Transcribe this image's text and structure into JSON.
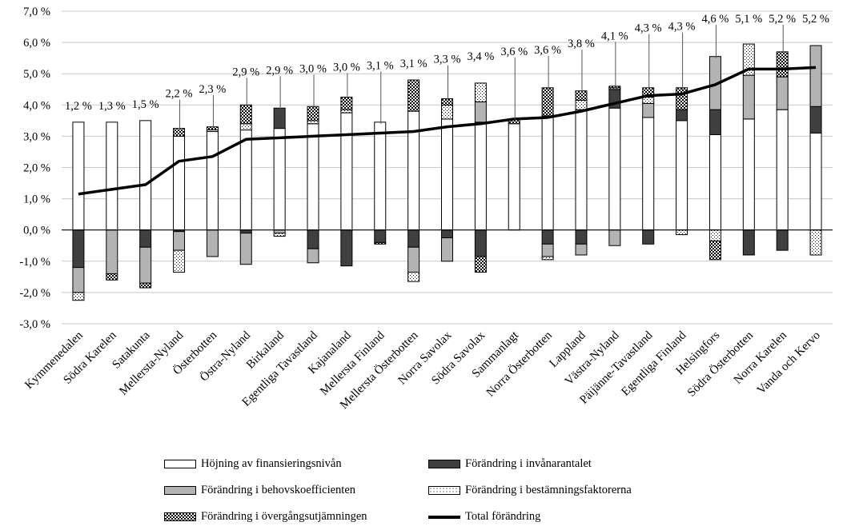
{
  "chart_data": {
    "type": "bar",
    "stacked": true,
    "yticks": [
      "-3,0 %",
      "-2,0 %",
      "-1,0 %",
      "0,0 %",
      "1,0 %",
      "2,0 %",
      "3,0 %",
      "4,0 %",
      "5,0 %",
      "6,0 %",
      "7,0 %"
    ],
    "ylim": [
      -3,
      7
    ],
    "grid": true,
    "legend_position": "bottom",
    "categories": [
      "Kymmenedalen",
      "Södra Karelen",
      "Satakunta",
      "Mellersta-Nyland",
      "Österbotten",
      "Östra-Nyland",
      "Birkaland",
      "Egentliga Tavastland",
      "Kajanaland",
      "Mellersta Finland",
      "Mellersta Österbotten",
      "Norra Savolax",
      "Södra Savolax",
      "Sammanlagt",
      "Norra Österbotten",
      "Lappland",
      "Västra-Nyland",
      "Päijänne-Tavastland",
      "Egentliga Finland",
      "Helsingfors",
      "Södra Österbotten",
      "Norra Karelen",
      "Vanda och Kervo"
    ],
    "series": [
      {
        "name": "Höjning av finansieringsnivån",
        "pattern": "white",
        "values": [
          3.45,
          3.45,
          3.5,
          3.0,
          3.15,
          3.2,
          3.25,
          3.4,
          3.75,
          3.45,
          3.8,
          3.55,
          3.45,
          3.4,
          3.65,
          3.85,
          3.9,
          3.6,
          3.5,
          3.05,
          3.55,
          3.85,
          3.1
        ]
      },
      {
        "name": "Förändring i invånarantalet",
        "pattern": "darkgray",
        "values": [
          -1.2,
          0.0,
          -0.55,
          -0.05,
          0.0,
          -0.1,
          0.65,
          -0.6,
          -1.15,
          -0.4,
          -0.55,
          -0.25,
          -0.85,
          0.0,
          -0.45,
          -0.45,
          0.6,
          -0.45,
          0.35,
          0.8,
          -0.8,
          -0.65,
          0.85
        ]
      },
      {
        "name": "Förändring i behovskoefficienten",
        "pattern": "lightgray",
        "values": [
          -0.8,
          -1.4,
          -1.15,
          -0.6,
          -0.85,
          -1.0,
          -0.1,
          -0.45,
          0.0,
          0.0,
          -0.8,
          -0.75,
          0.65,
          0.0,
          -0.4,
          -0.35,
          -0.5,
          0.45,
          0.0,
          1.7,
          1.4,
          1.05,
          1.95
        ]
      },
      {
        "name": "Förändring i bestämningsfaktorerna",
        "pattern": "dots",
        "values": [
          -0.25,
          0.0,
          0.0,
          -0.7,
          0.05,
          0.2,
          -0.1,
          0.1,
          0.1,
          0.0,
          -0.3,
          0.45,
          0.6,
          0.0,
          -0.1,
          0.3,
          0.05,
          0.2,
          -0.15,
          -0.35,
          1.0,
          0.0,
          -0.8
        ]
      },
      {
        "name": "Förändring i övergångsutjämningen",
        "pattern": "checker",
        "values": [
          0.0,
          -0.2,
          -0.15,
          0.25,
          0.1,
          0.6,
          0.0,
          0.45,
          0.4,
          -0.05,
          1.0,
          0.2,
          -0.5,
          0.15,
          0.9,
          0.3,
          0.05,
          0.3,
          0.7,
          -0.6,
          0.0,
          0.8,
          0.0
        ]
      }
    ],
    "total": {
      "name": "Total förändring",
      "values": [
        1.15,
        1.3,
        1.45,
        2.2,
        2.35,
        2.9,
        2.95,
        3.0,
        3.05,
        3.1,
        3.15,
        3.3,
        3.4,
        3.55,
        3.6,
        3.8,
        4.05,
        4.3,
        4.35,
        4.65,
        5.15,
        5.15,
        5.2
      ]
    },
    "data_labels": [
      "1,2 %",
      "1,3 %",
      "1,5 %",
      "2,2 %",
      "2,3 %",
      "2,9 %",
      "2,9 %",
      "3,0 %",
      "3,0 %",
      "3,1 %",
      "3,1 %",
      "3,3 %",
      "3,4 %",
      "3,6 %",
      "3,6 %",
      "3,8 %",
      "4,1 %",
      "4,3 %",
      "4,3 %",
      "4,6 %",
      "5,1 %",
      "5,2 %",
      "5,2 %"
    ]
  }
}
